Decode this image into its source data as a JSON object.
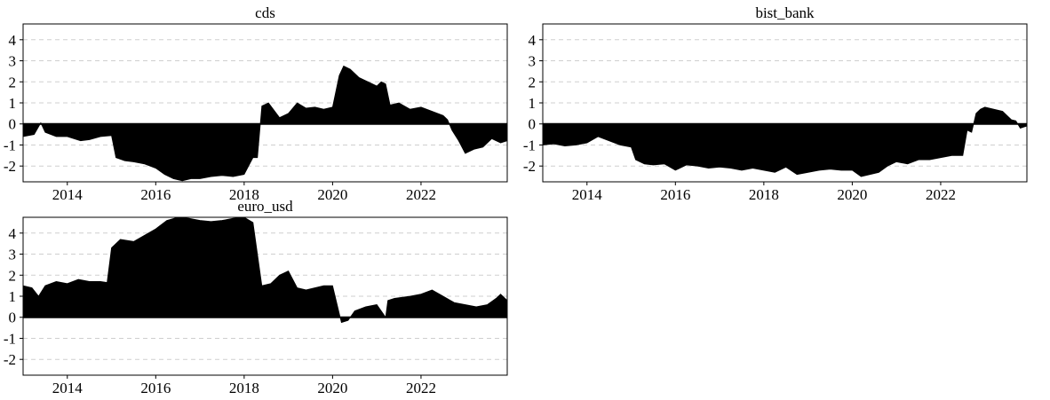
{
  "figure": {
    "x_ticks": [
      "2014",
      "2016",
      "2018",
      "2020",
      "2022"
    ],
    "y_ticks": [
      "-2",
      "-1",
      "0",
      "1",
      "2",
      "3",
      "4"
    ]
  },
  "chart_data": [
    {
      "type": "area",
      "title": "cds",
      "xlabel": "",
      "ylabel": "",
      "xlim": [
        2013.0,
        2023.95
      ],
      "ylim": [
        -2.75,
        4.75
      ],
      "grid": true,
      "x": [
        2013.0,
        2013.25,
        2013.4,
        2013.5,
        2013.75,
        2014.0,
        2014.3,
        2014.5,
        2014.75,
        2015.0,
        2015.1,
        2015.3,
        2015.5,
        2015.75,
        2016.0,
        2016.2,
        2016.4,
        2016.6,
        2016.8,
        2017.0,
        2017.25,
        2017.5,
        2017.75,
        2018.0,
        2018.2,
        2018.3,
        2018.4,
        2018.55,
        2018.8,
        2019.0,
        2019.2,
        2019.4,
        2019.6,
        2019.8,
        2020.0,
        2020.15,
        2020.25,
        2020.4,
        2020.6,
        2020.8,
        2021.0,
        2021.1,
        2021.2,
        2021.3,
        2021.5,
        2021.75,
        2022.0,
        2022.25,
        2022.5,
        2022.6,
        2022.7,
        2022.85,
        2023.0,
        2023.2,
        2023.4,
        2023.6,
        2023.8,
        2023.95
      ],
      "y": [
        -0.6,
        -0.5,
        0.05,
        -0.4,
        -0.6,
        -0.6,
        -0.8,
        -0.75,
        -0.6,
        -0.55,
        -1.6,
        -1.75,
        -1.8,
        -1.9,
        -2.1,
        -2.4,
        -2.6,
        -2.7,
        -2.6,
        -2.6,
        -2.5,
        -2.45,
        -2.5,
        -2.4,
        -1.6,
        -1.6,
        0.85,
        1.0,
        0.3,
        0.5,
        1.0,
        0.75,
        0.8,
        0.7,
        0.8,
        2.3,
        2.75,
        2.6,
        2.2,
        2.0,
        1.8,
        2.0,
        1.9,
        0.9,
        1.0,
        0.7,
        0.8,
        0.6,
        0.4,
        0.2,
        -0.3,
        -0.8,
        -1.4,
        -1.2,
        -1.1,
        -0.7,
        -0.9,
        -0.8
      ]
    },
    {
      "type": "area",
      "title": "bist_bank",
      "xlabel": "",
      "ylabel": "",
      "xlim": [
        2013.0,
        2023.95
      ],
      "ylim": [
        -2.75,
        4.75
      ],
      "grid": true,
      "x": [
        2013.0,
        2013.25,
        2013.5,
        2013.75,
        2014.0,
        2014.25,
        2014.5,
        2014.75,
        2015.0,
        2015.1,
        2015.3,
        2015.5,
        2015.75,
        2016.0,
        2016.25,
        2016.5,
        2016.75,
        2017.0,
        2017.25,
        2017.5,
        2017.75,
        2018.0,
        2018.25,
        2018.5,
        2018.75,
        2019.0,
        2019.25,
        2019.5,
        2019.75,
        2020.0,
        2020.2,
        2020.4,
        2020.6,
        2020.8,
        2021.0,
        2021.25,
        2021.5,
        2021.75,
        2022.0,
        2022.25,
        2022.5,
        2022.6,
        2022.7,
        2022.8,
        2022.9,
        2023.0,
        2023.2,
        2023.4,
        2023.6,
        2023.7,
        2023.8,
        2023.95
      ],
      "y": [
        -1.0,
        -0.95,
        -1.05,
        -1.0,
        -0.9,
        -0.6,
        -0.8,
        -1.0,
        -1.1,
        -1.7,
        -1.9,
        -1.95,
        -1.9,
        -2.2,
        -1.95,
        -2.0,
        -2.1,
        -2.05,
        -2.1,
        -2.2,
        -2.1,
        -2.2,
        -2.3,
        -2.05,
        -2.4,
        -2.3,
        -2.2,
        -2.15,
        -2.2,
        -2.2,
        -2.5,
        -2.4,
        -2.3,
        -2.0,
        -1.8,
        -1.9,
        -1.7,
        -1.7,
        -1.6,
        -1.5,
        -1.5,
        -0.3,
        -0.4,
        0.5,
        0.7,
        0.8,
        0.7,
        0.6,
        0.2,
        0.15,
        -0.2,
        -0.1
      ]
    },
    {
      "type": "area",
      "title": "euro_usd",
      "xlabel": "",
      "ylabel": "",
      "xlim": [
        2013.0,
        2023.95
      ],
      "ylim": [
        -2.75,
        4.75
      ],
      "grid": true,
      "x": [
        2013.0,
        2013.2,
        2013.35,
        2013.5,
        2013.75,
        2014.0,
        2014.25,
        2014.5,
        2014.75,
        2014.9,
        2015.0,
        2015.2,
        2015.5,
        2015.75,
        2016.0,
        2016.25,
        2016.5,
        2016.75,
        2017.0,
        2017.25,
        2017.5,
        2017.75,
        2018.0,
        2018.2,
        2018.4,
        2018.6,
        2018.8,
        2019.0,
        2019.2,
        2019.4,
        2019.6,
        2019.8,
        2020.0,
        2020.2,
        2020.35,
        2020.5,
        2020.75,
        2021.0,
        2021.2,
        2021.25,
        2021.4,
        2021.75,
        2022.0,
        2022.25,
        2022.5,
        2022.75,
        2023.0,
        2023.25,
        2023.5,
        2023.7,
        2023.8,
        2023.95
      ],
      "y": [
        1.5,
        1.4,
        1.0,
        1.5,
        1.7,
        1.6,
        1.8,
        1.7,
        1.7,
        1.65,
        3.3,
        3.7,
        3.6,
        3.9,
        4.2,
        4.6,
        4.75,
        4.7,
        4.6,
        4.55,
        4.6,
        4.7,
        4.75,
        4.5,
        1.5,
        1.6,
        2.0,
        2.2,
        1.4,
        1.3,
        1.4,
        1.5,
        1.5,
        -0.25,
        -0.15,
        0.3,
        0.5,
        0.6,
        0.0,
        0.8,
        0.9,
        1.0,
        1.1,
        1.3,
        1.0,
        0.7,
        0.6,
        0.5,
        0.6,
        0.9,
        1.1,
        0.8
      ]
    }
  ]
}
